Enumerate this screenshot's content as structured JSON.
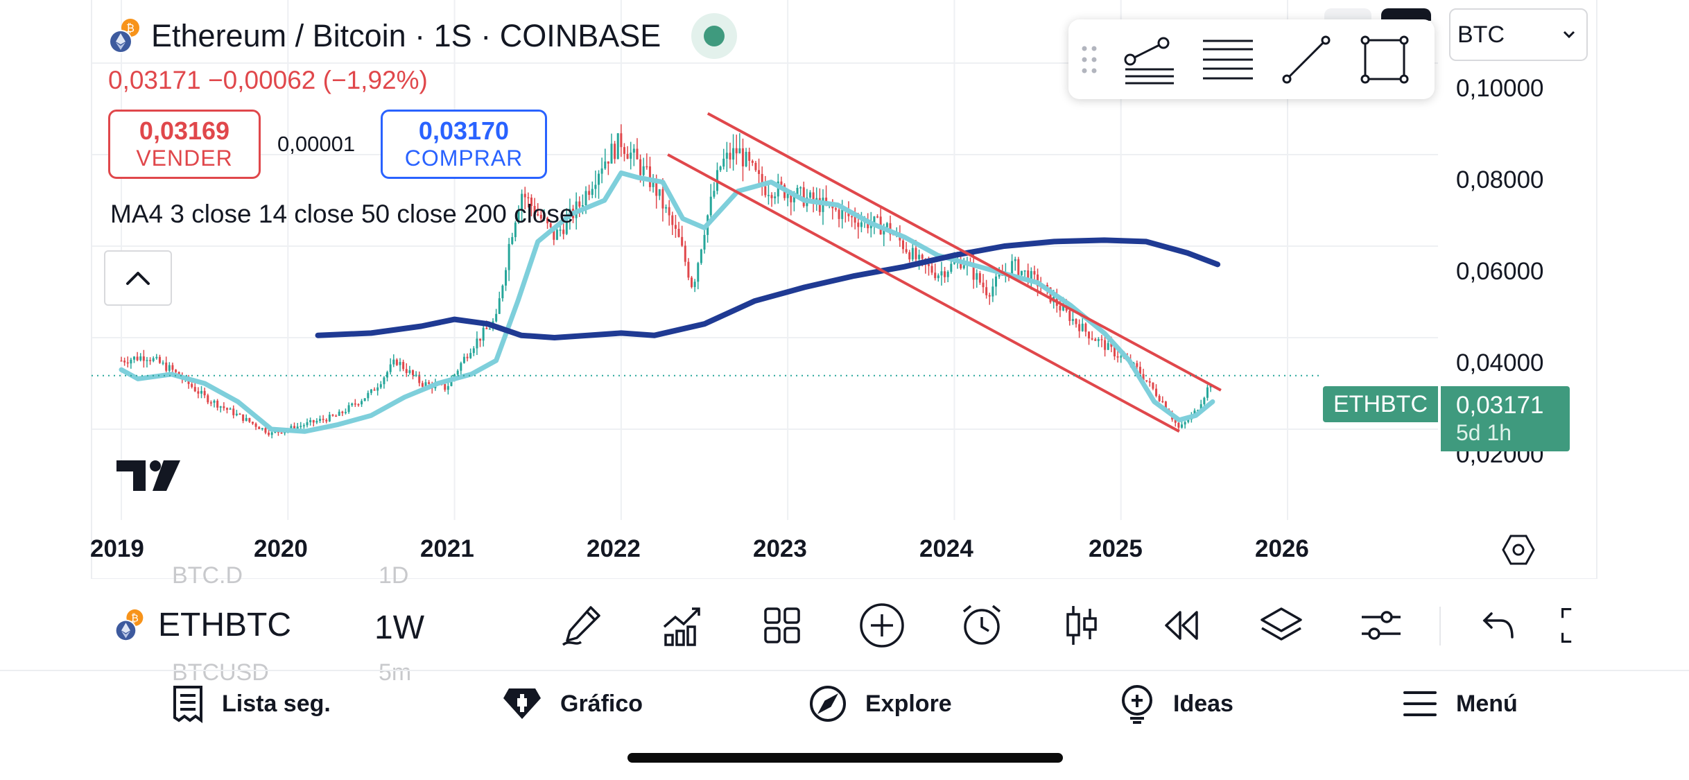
{
  "header": {
    "title": "Ethereum / Bitcoin · 1S · COINBASE",
    "quote_line": "0,03171  −0,00062 (−1,92%)",
    "sell": {
      "value": "0,03169",
      "label": "VENDER"
    },
    "spread": "0,00001",
    "buy": {
      "value": "0,03170",
      "label": "COMPRAR"
    },
    "indicator_label": "MA4 3 close 14 close 50 close 200 close",
    "live_status_color": "#3f9a7e"
  },
  "symbol_select": {
    "value": "BTC"
  },
  "drawing_toolbar": {
    "items": [
      "grip-icon",
      "trend-line-with-levels-icon",
      "horizontal-lines-icon",
      "trend-line-icon",
      "rectangle-icon"
    ]
  },
  "chart_data": {
    "type": "candlestick",
    "symbol": "ETHBTC",
    "x_ticks": [
      "2019",
      "2020",
      "2021",
      "2022",
      "2023",
      "2024",
      "2025",
      "2026"
    ],
    "y_ticks": [
      "0,10000",
      "0,08000",
      "0,06000",
      "0,04000",
      "0,02000"
    ],
    "ylim": [
      0.01,
      0.106
    ],
    "last_price_label": {
      "symbol": "ETHBTC",
      "price": "0,03171",
      "countdown": "5d 1h",
      "value": 0.03171
    },
    "colors": {
      "up": "#26a69a",
      "down": "#e0474b",
      "ma_fast": "#7ecfdb",
      "ma_slow": "#1f3a93",
      "channel": "#e0474b",
      "price_line": "#26a69a"
    },
    "series": [
      {
        "name": "MA fast",
        "x": [
          2019.0,
          2019.1,
          2019.3,
          2019.5,
          2019.7,
          2019.9,
          2020.1,
          2020.3,
          2020.5,
          2020.7,
          2020.9,
          2021.1,
          2021.25,
          2021.38,
          2021.5,
          2021.7,
          2021.9,
          2022.0,
          2022.1,
          2022.25,
          2022.37,
          2022.5,
          2022.7,
          2022.9,
          2023.1,
          2023.3,
          2023.5,
          2023.7,
          2023.9,
          2024.1,
          2024.3,
          2024.5,
          2024.7,
          2024.9,
          2025.05,
          2025.2,
          2025.35,
          2025.45,
          2025.55
        ],
        "y": [
          0.033,
          0.031,
          0.032,
          0.03,
          0.026,
          0.02,
          0.0195,
          0.021,
          0.023,
          0.027,
          0.03,
          0.032,
          0.035,
          0.048,
          0.061,
          0.067,
          0.07,
          0.076,
          0.075,
          0.074,
          0.066,
          0.064,
          0.072,
          0.074,
          0.07,
          0.069,
          0.065,
          0.062,
          0.058,
          0.056,
          0.054,
          0.052,
          0.047,
          0.041,
          0.035,
          0.026,
          0.022,
          0.023,
          0.026
        ]
      },
      {
        "name": "MA slow",
        "x": [
          2020.18,
          2020.5,
          2020.8,
          2021.0,
          2021.2,
          2021.4,
          2021.6,
          2021.8,
          2022.0,
          2022.2,
          2022.5,
          2022.8,
          2023.1,
          2023.4,
          2023.7,
          2024.0,
          2024.3,
          2024.6,
          2024.9,
          2025.15,
          2025.4,
          2025.58
        ],
        "y": [
          0.0405,
          0.041,
          0.0425,
          0.044,
          0.043,
          0.0405,
          0.04,
          0.0405,
          0.041,
          0.0405,
          0.043,
          0.048,
          0.051,
          0.0535,
          0.0555,
          0.058,
          0.06,
          0.061,
          0.0613,
          0.061,
          0.0585,
          0.056
        ]
      }
    ],
    "channel_lines": [
      {
        "x": [
          2022.52,
          2025.6
        ],
        "y": [
          0.089,
          0.0285
        ]
      },
      {
        "x": [
          2022.28,
          2025.35
        ],
        "y": [
          0.08,
          0.0195
        ]
      }
    ],
    "candles_source": {
      "x": [
        2019.0,
        2019.15,
        2019.3,
        2019.5,
        2019.7,
        2019.9,
        2020.1,
        2020.3,
        2020.5,
        2020.65,
        2020.8,
        2020.95,
        2021.1,
        2021.25,
        2021.33,
        2021.4,
        2021.6,
        2021.75,
        2021.88,
        2022.0,
        2022.2,
        2022.35,
        2022.43,
        2022.5,
        2022.6,
        2022.7,
        2022.85,
        2023.0,
        2023.2,
        2023.4,
        2023.6,
        2023.8,
        2023.9,
        2024.05,
        2024.2,
        2024.35,
        2024.5,
        2024.65,
        2024.8,
        2024.95,
        2025.1,
        2025.25,
        2025.35,
        2025.45,
        2025.55
      ],
      "y": [
        0.035,
        0.036,
        0.033,
        0.027,
        0.023,
        0.019,
        0.021,
        0.023,
        0.028,
        0.035,
        0.03,
        0.029,
        0.038,
        0.044,
        0.061,
        0.072,
        0.062,
        0.069,
        0.078,
        0.083,
        0.073,
        0.061,
        0.051,
        0.064,
        0.078,
        0.081,
        0.073,
        0.072,
        0.069,
        0.066,
        0.064,
        0.056,
        0.054,
        0.057,
        0.05,
        0.056,
        0.052,
        0.046,
        0.041,
        0.037,
        0.033,
        0.026,
        0.02,
        0.024,
        0.031
      ]
    }
  },
  "bottom_toolbar": {
    "ghost_top": [
      "BTC.D",
      "1D"
    ],
    "ghost_bottom": [
      "BTCUSD",
      "5m"
    ],
    "symbol": "ETHBTC",
    "timeframe": "1W",
    "tools": [
      "pencil-icon",
      "indicators-icon",
      "grid-icon",
      "add-circle-icon",
      "alarm-icon",
      "candles-icon",
      "replay-icon",
      "layers-icon",
      "settings-sliders-icon",
      "undo-icon",
      "fullscreen-icon"
    ]
  },
  "bottom_nav": [
    {
      "label": "Lista seg.",
      "icon": "watchlist-icon"
    },
    {
      "label": "Gráfico",
      "icon": "chart-icon"
    },
    {
      "label": "Explore",
      "icon": "compass-icon"
    },
    {
      "label": "Ideas",
      "icon": "ideas-icon"
    },
    {
      "label": "Menú",
      "icon": "menu-icon"
    }
  ]
}
